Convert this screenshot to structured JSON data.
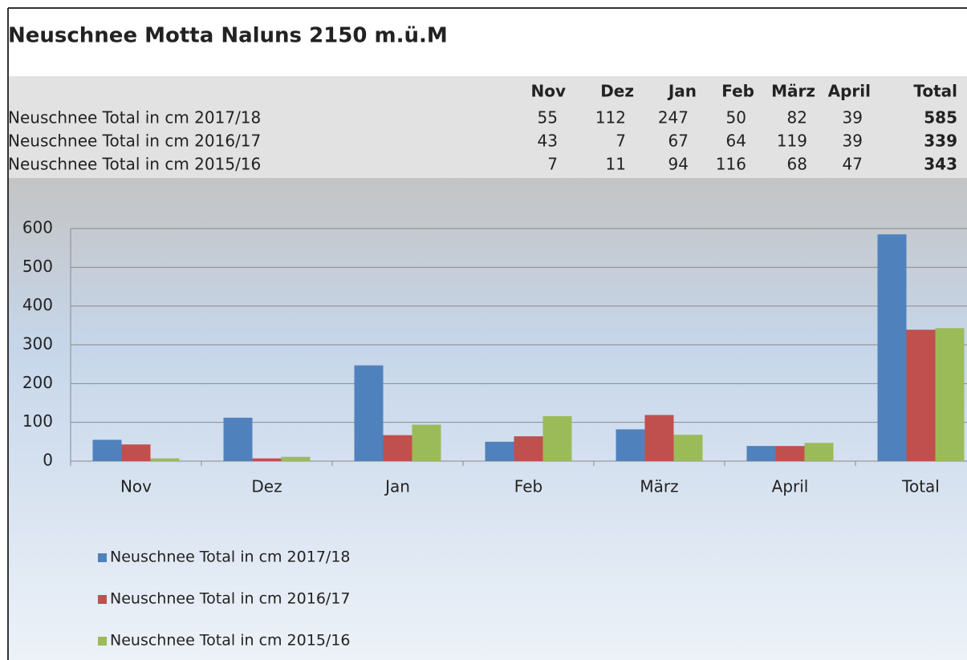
{
  "title": "Neuschnee Motta Naluns 2150 m.ü.M",
  "table": {
    "columns": [
      "Nov",
      "Dez",
      "Jan",
      "Feb",
      "März",
      "April",
      "Total"
    ],
    "rows": [
      [
        "Neuschnee Total in cm 2017/18",
        55,
        112,
        247,
        50,
        82,
        39,
        585
      ],
      [
        "Neuschnee Total in cm 2016/17",
        43,
        7,
        67,
        64,
        119,
        39,
        339
      ],
      [
        "Neuschnee Total in cm 2015/16",
        7,
        11,
        94,
        116,
        68,
        47,
        343
      ]
    ]
  },
  "chart_data": {
    "type": "bar",
    "categories": [
      "Nov",
      "Dez",
      "Jan",
      "Feb",
      "März",
      "April",
      "Total"
    ],
    "series": [
      {
        "name": "Neuschnee Total in cm 2017/18",
        "color": "#4f81bd",
        "values": [
          55,
          112,
          247,
          50,
          82,
          39,
          585
        ]
      },
      {
        "name": "Neuschnee Total in cm 2016/17",
        "color": "#c0504d",
        "values": [
          43,
          7,
          67,
          64,
          119,
          39,
          339
        ]
      },
      {
        "name": "Neuschnee Total in cm 2015/16",
        "color": "#9bbb59",
        "values": [
          7,
          11,
          94,
          116,
          68,
          47,
          343
        ]
      }
    ],
    "ylim": [
      0,
      600
    ],
    "yticks": [
      0,
      100,
      200,
      300,
      400,
      500,
      600
    ],
    "grid": true
  }
}
